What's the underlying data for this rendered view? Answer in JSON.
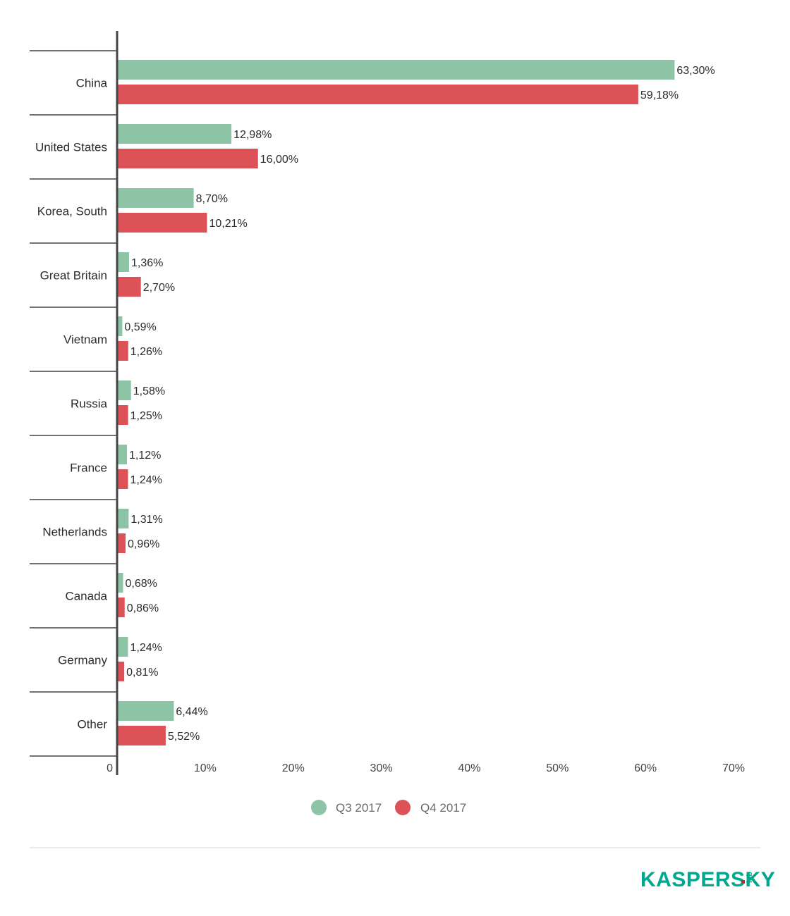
{
  "chart_data": {
    "type": "bar",
    "orientation": "horizontal",
    "categories": [
      "China",
      "United States",
      "Korea, South",
      "Great Britain",
      "Vietnam",
      "Russia",
      "France",
      "Netherlands",
      "Canada",
      "Germany",
      "Other"
    ],
    "series": [
      {
        "name": "Q3 2017",
        "color": "#8ec4a6",
        "values": [
          63.3,
          12.98,
          8.7,
          1.36,
          0.59,
          1.58,
          1.12,
          1.31,
          0.68,
          1.24,
          6.44
        ],
        "labels": [
          "63,30%",
          "12,98%",
          "8,70%",
          "1,36%",
          "0,59%",
          "1,58%",
          "1,12%",
          "1,31%",
          "0,68%",
          "1,24%",
          "6,44%"
        ]
      },
      {
        "name": "Q4 2017",
        "color": "#dc5257",
        "values": [
          59.18,
          16.0,
          10.21,
          2.7,
          1.26,
          1.25,
          1.24,
          0.96,
          0.86,
          0.81,
          5.52
        ],
        "labels": [
          "59,18%",
          "16,00%",
          "10,21%",
          "2,70%",
          "1,26%",
          "1,25%",
          "1,24%",
          "0,96%",
          "0,86%",
          "0,81%",
          "5,52%"
        ]
      }
    ],
    "xlim": [
      0,
      70
    ],
    "xticks": [
      0,
      10,
      20,
      30,
      40,
      50,
      60,
      70
    ],
    "xtick_labels": [
      "0",
      "10%",
      "20%",
      "30%",
      "40%",
      "50%",
      "60%",
      "70%"
    ],
    "legend_position": "bottom-center",
    "grid": false
  },
  "brand": {
    "name": "KASPERSKY",
    "suffix": "lab",
    "color": "#00a88e",
    "accent": "#d6222a"
  }
}
